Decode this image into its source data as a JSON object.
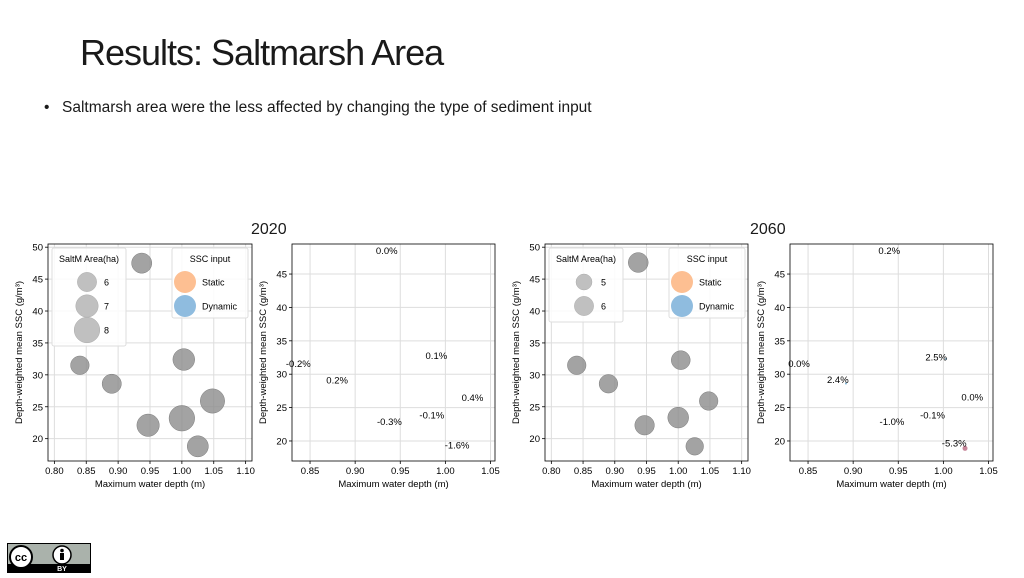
{
  "slide": {
    "title": "Results: Saltmarsh Area",
    "bullet": "Saltmarsh area were the less affected by changing the type of sediment input",
    "year_left": "2020",
    "year_right": "2060",
    "license": "BY"
  },
  "colors": {
    "bubble": "#8c8c8c",
    "static": "#fdbf92",
    "dynamic": "#8fbcdf",
    "grid": "#dddddd"
  },
  "chart_data": [
    {
      "type": "scatter",
      "title": "",
      "xlabel": "Maximum water depth (m)",
      "ylabel": "Depth-weighted mean SSC (g/m³)",
      "xlim": [
        0.79,
        1.11
      ],
      "ylim": [
        16.5,
        50.5
      ],
      "xticks": [
        "0.80",
        "0.85",
        "0.90",
        "0.95",
        "1.00",
        "1.05",
        "1.10"
      ],
      "yticks": [
        "20",
        "25",
        "30",
        "35",
        "40",
        "45",
        "50"
      ],
      "legend_size_title": "SaltM Area(ha)",
      "legend_size_labels": [
        "6",
        "7",
        "8"
      ],
      "legend_color_title": "SSC input",
      "legend_color_labels": [
        "Static",
        "Dynamic"
      ],
      "points": [
        {
          "x": 0.84,
          "y": 31.5,
          "s": 5.8
        },
        {
          "x": 0.89,
          "y": 28.6,
          "s": 6.0
        },
        {
          "x": 0.937,
          "y": 47.5,
          "s": 6.3
        },
        {
          "x": 0.947,
          "y": 22.1,
          "s": 7.0
        },
        {
          "x": 1.003,
          "y": 32.4,
          "s": 6.8
        },
        {
          "x": 1.0,
          "y": 23.2,
          "s": 8.0
        },
        {
          "x": 1.048,
          "y": 25.9,
          "s": 7.6
        },
        {
          "x": 1.025,
          "y": 18.8,
          "s": 6.6
        }
      ]
    },
    {
      "type": "scatter",
      "title": "",
      "xlabel": "Maximum water depth (m)",
      "ylabel": "Depth-weighted mean SSC (g/m³)",
      "xlim": [
        0.83,
        1.055
      ],
      "ylim": [
        17,
        49.5
      ],
      "xticks": [
        "0.85",
        "0.90",
        "0.95",
        "1.00",
        "1.05"
      ],
      "yticks": [
        "20",
        "25",
        "30",
        "35",
        "40",
        "45"
      ],
      "labels": [
        {
          "x": 0.935,
          "y": 48.5,
          "text": "0.0%"
        },
        {
          "x": 0.837,
          "y": 31.6,
          "text": "-0.2%"
        },
        {
          "x": 0.88,
          "y": 29.1,
          "text": "0.2%"
        },
        {
          "x": 0.99,
          "y": 32.8,
          "text": "0.1%"
        },
        {
          "x": 1.03,
          "y": 26.5,
          "text": "0.4%"
        },
        {
          "x": 0.985,
          "y": 23.9,
          "text": "-0.1%"
        },
        {
          "x": 0.938,
          "y": 22.9,
          "text": "-0.3%"
        },
        {
          "x": 1.013,
          "y": 19.4,
          "text": "-1.6%"
        }
      ]
    },
    {
      "type": "scatter",
      "title": "",
      "xlabel": "Maximum water depth (m)",
      "ylabel": "Depth-weighted mean SSC (g/m³)",
      "xlim": [
        0.79,
        1.11
      ],
      "ylim": [
        16.5,
        50.5
      ],
      "xticks": [
        "0.80",
        "0.85",
        "0.90",
        "0.95",
        "1.00",
        "1.05",
        "1.10"
      ],
      "yticks": [
        "20",
        "25",
        "30",
        "35",
        "40",
        "45",
        "50"
      ],
      "legend_size_title": "SaltM Area(ha)",
      "legend_size_labels": [
        "5",
        "6"
      ],
      "legend_color_title": "SSC input",
      "legend_color_labels": [
        "Static",
        "Dynamic"
      ],
      "points": [
        {
          "x": 0.84,
          "y": 31.5,
          "s": 5.8
        },
        {
          "x": 0.89,
          "y": 28.6,
          "s": 5.8
        },
        {
          "x": 0.937,
          "y": 47.6,
          "s": 6.2
        },
        {
          "x": 0.947,
          "y": 22.1,
          "s": 6.1
        },
        {
          "x": 1.004,
          "y": 32.3,
          "s": 5.9
        },
        {
          "x": 1.0,
          "y": 23.3,
          "s": 6.5
        },
        {
          "x": 1.048,
          "y": 25.9,
          "s": 5.8
        },
        {
          "x": 1.026,
          "y": 18.8,
          "s": 5.5
        }
      ]
    },
    {
      "type": "scatter",
      "title": "",
      "xlabel": "Maximum water depth (m)",
      "ylabel": "Depth-weighted mean SSC (g/m³)",
      "xlim": [
        0.83,
        1.055
      ],
      "ylim": [
        17,
        49.5
      ],
      "xticks": [
        "0.85",
        "0.90",
        "0.95",
        "1.00",
        "1.05"
      ],
      "yticks": [
        "20",
        "25",
        "30",
        "35",
        "40",
        "45"
      ],
      "labels": [
        {
          "x": 0.94,
          "y": 48.5,
          "text": "0.2%"
        },
        {
          "x": 0.84,
          "y": 31.6,
          "text": "0.0%"
        },
        {
          "x": 0.883,
          "y": 29.2,
          "text": "2.4%"
        },
        {
          "x": 0.992,
          "y": 32.6,
          "text": "2.5%"
        },
        {
          "x": 1.032,
          "y": 26.6,
          "text": "0.0%"
        },
        {
          "x": 0.988,
          "y": 23.9,
          "text": "-0.1%"
        },
        {
          "x": 0.943,
          "y": 22.9,
          "text": "-1.0%"
        },
        {
          "x": 1.012,
          "y": 19.7,
          "text": "-5.3%"
        }
      ],
      "markers": [
        {
          "x": 1.003,
          "y": 32.3,
          "s": 1,
          "color": "#7fb5d5"
        },
        {
          "x": 0.892,
          "y": 28.6,
          "s": 1,
          "color": "#7fb5d5"
        },
        {
          "x": 1.024,
          "y": 18.9,
          "s": 2.5,
          "color": "#c7869a"
        }
      ]
    }
  ]
}
